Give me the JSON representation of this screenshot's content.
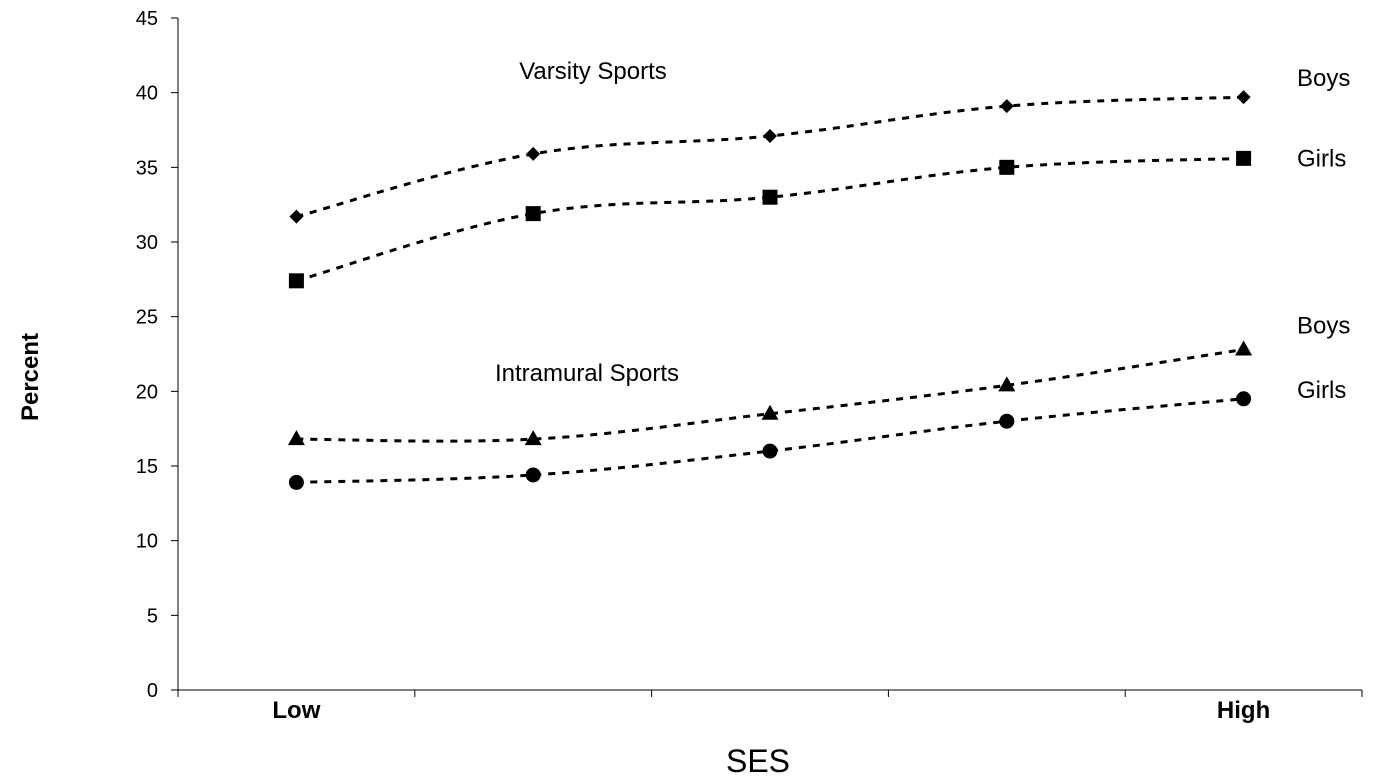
{
  "chart_data": {
    "type": "line",
    "xlabel": "SES",
    "ylabel": "Percent",
    "ylim": [
      0,
      45
    ],
    "yticks": [
      0,
      5,
      10,
      15,
      20,
      25,
      30,
      35,
      40,
      45
    ],
    "x_points": 5,
    "x_tick_labels": [
      {
        "index": 0,
        "label": "Low"
      },
      {
        "index": 4,
        "label": "High"
      }
    ],
    "grid": false,
    "legend": "none",
    "line_style": "dashed",
    "line_color": "#000000",
    "groups": [
      {
        "label": "Varsity Sports",
        "series": [
          {
            "name": "Boys",
            "marker": "diamond",
            "values": [
              31.7,
              35.9,
              37.1,
              39.1,
              39.7
            ]
          },
          {
            "name": "Girls",
            "marker": "square",
            "values": [
              27.4,
              31.9,
              33.0,
              35.0,
              35.6
            ]
          }
        ]
      },
      {
        "label": "Intramural Sports",
        "series": [
          {
            "name": "Boys",
            "marker": "triangle",
            "values": [
              16.8,
              16.8,
              18.5,
              20.4,
              22.8
            ]
          },
          {
            "name": "Girls",
            "marker": "circle",
            "values": [
              13.9,
              14.4,
              16.0,
              18.0,
              19.5
            ]
          }
        ]
      }
    ]
  }
}
